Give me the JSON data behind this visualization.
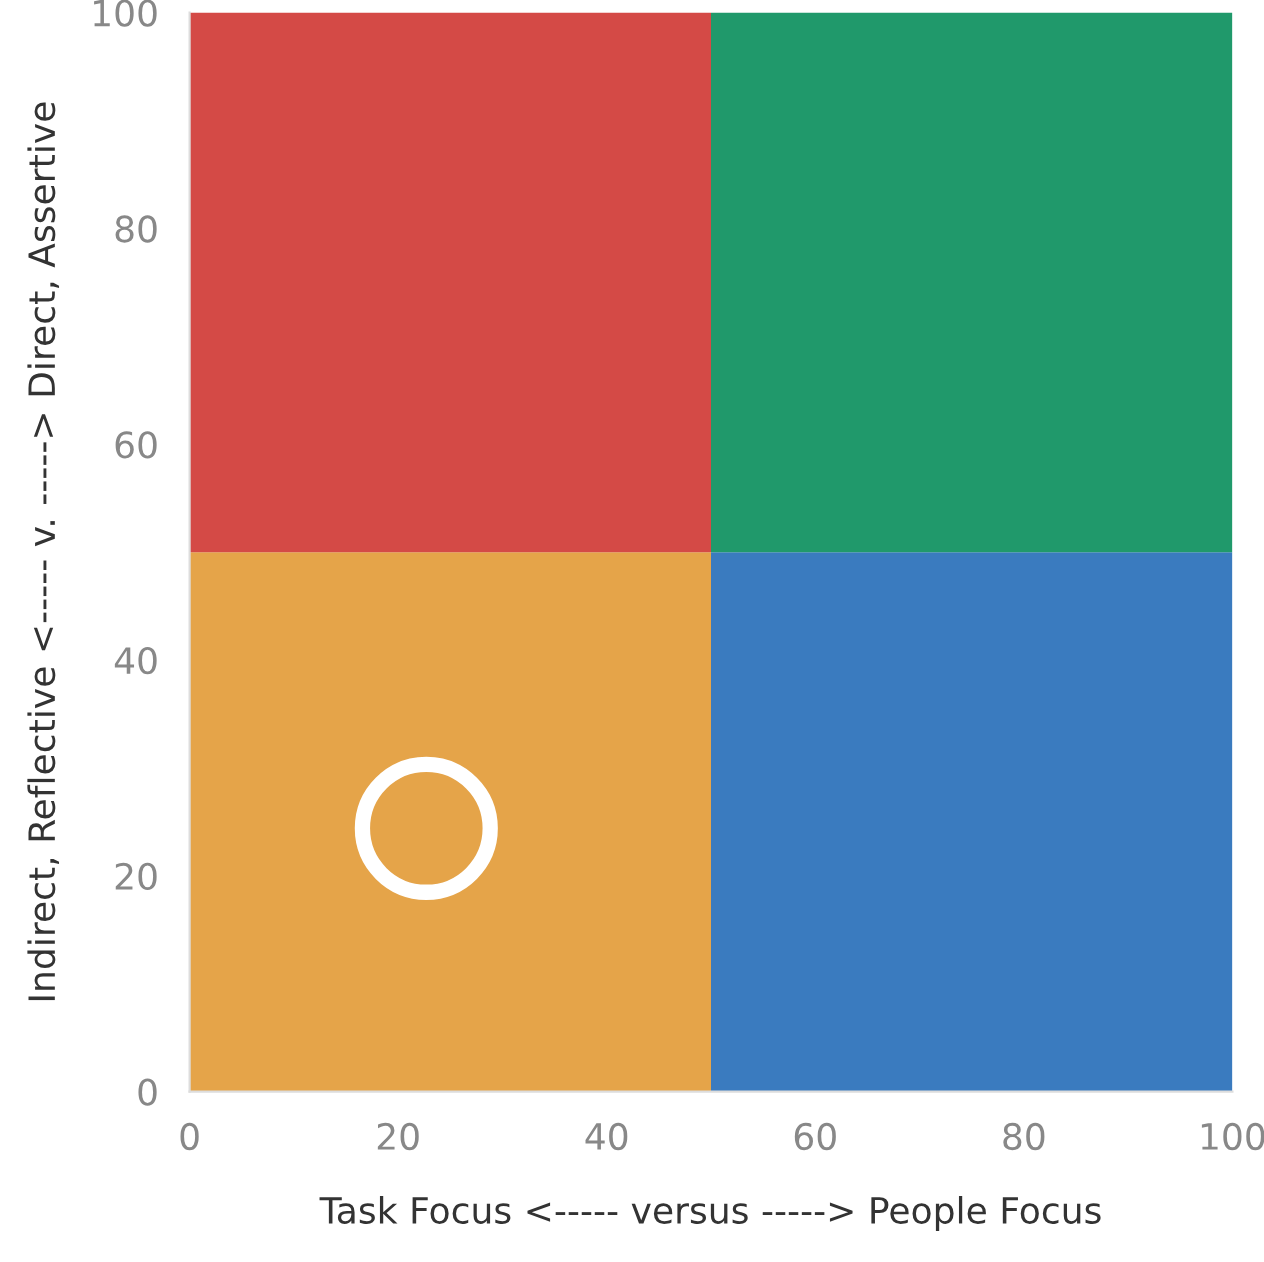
{
  "chart_data": {
    "type": "bar",
    "xlabel": "Task Focus <----- versus -----> People Focus",
    "ylabel": "Indirect, Reflective <----- v. -----> Direct, Assertive",
    "x": [
      25,
      75
    ],
    "stacked": true,
    "series": [
      {
        "colors": [
          "#e5a449",
          "#3a7bbf"
        ],
        "values": [
          50,
          50
        ]
      },
      {
        "colors": [
          "#d44a46",
          "#20996b"
        ],
        "values": [
          50,
          50
        ]
      },
      {
        "type": "scatter",
        "x": [
          22.7
        ],
        "values": [
          24.4
        ],
        "color": "#ffffff"
      }
    ],
    "marker": "circle",
    "xlim": [
      0,
      100
    ],
    "ylim": [
      0,
      100
    ],
    "xticks": [
      0,
      20,
      40,
      60,
      80,
      100
    ],
    "yticks": [
      0,
      20,
      40,
      60,
      80,
      100
    ],
    "grid": false,
    "legend": false
  }
}
